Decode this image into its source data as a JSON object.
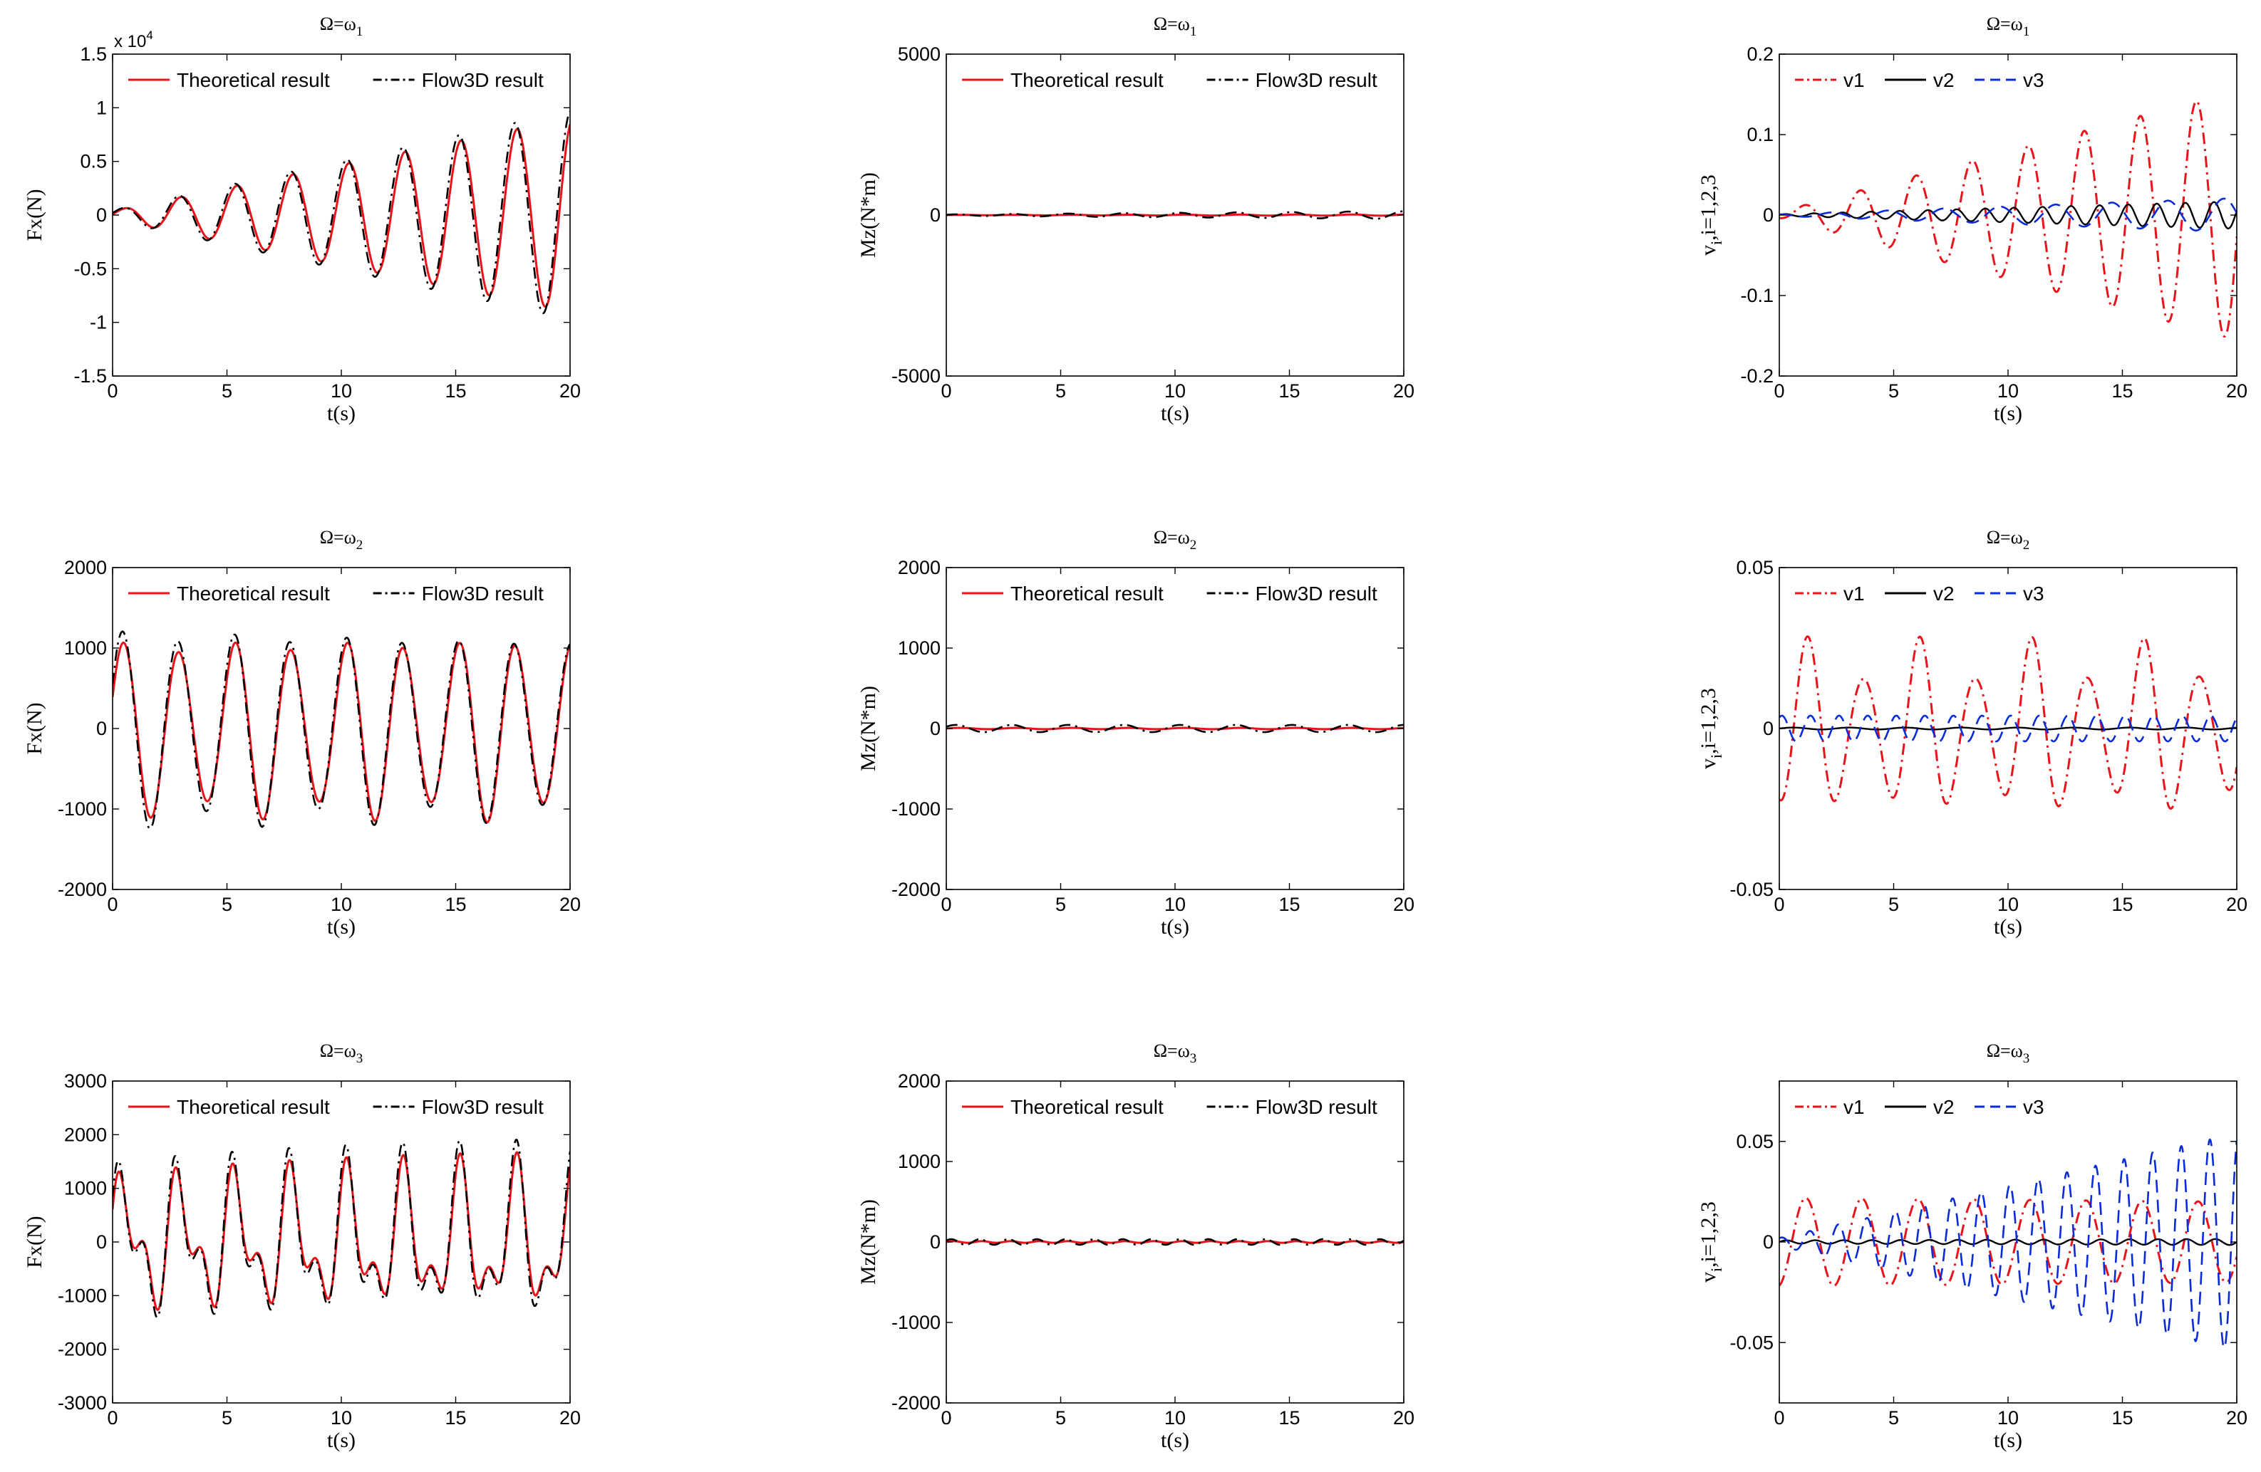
{
  "figure": {
    "colors": {
      "red": "#e8141a",
      "black": "#000000",
      "blue": "#0a2bd8"
    }
  },
  "chart_data": [
    {
      "type": "line",
      "id": "fx-w1",
      "title": "Ω=ω",
      "title_sub": "1",
      "xlabel": "t(s)",
      "ylabel": "Fx(N)",
      "xlim": [
        0,
        20
      ],
      "ylim": [
        -15000,
        15000
      ],
      "xticks": [
        0,
        5,
        10,
        15,
        20
      ],
      "xtick_labels": [
        "0",
        "5",
        "10",
        "15",
        "20"
      ],
      "yticks": [
        15000,
        10000,
        5000,
        0,
        -5000,
        -10000,
        -15000
      ],
      "ytick_labels": [
        "1.5",
        "1",
        "0.5",
        "0",
        "-0.5",
        "-1",
        "-1.5"
      ],
      "exponent_label": "x 10",
      "exponent_power": "4",
      "legend": [
        {
          "label": "Theoretical result",
          "style": "solid",
          "color": "#e8141a"
        },
        {
          "label": "Flow3D result",
          "style": "dashdot",
          "color": "#000000"
        }
      ],
      "series": [
        {
          "name": "Theoretical result",
          "style": "solid",
          "color": "#e8141a",
          "width": 3,
          "kind": "sine",
          "period": 2.45,
          "amp_start": 400,
          "amp_end": 9000,
          "phase": 0.2,
          "offset": 0
        },
        {
          "name": "Flow3D result",
          "style": "dashdot",
          "color": "#000000",
          "width": 2.6,
          "kind": "sine",
          "period": 2.45,
          "amp_start": 450,
          "amp_end": 9700,
          "phase": 0.45,
          "offset": 0
        }
      ]
    },
    {
      "type": "line",
      "id": "mz-w1",
      "title": "Ω=ω",
      "title_sub": "1",
      "xlabel": "t(s)",
      "ylabel": "Mz(N*m)",
      "xlim": [
        0,
        20
      ],
      "ylim": [
        -5000,
        5000
      ],
      "xticks": [
        0,
        5,
        10,
        15,
        20
      ],
      "xtick_labels": [
        "0",
        "5",
        "10",
        "15",
        "20"
      ],
      "yticks": [
        5000,
        0,
        -5000
      ],
      "ytick_labels": [
        "5000",
        "0",
        "-5000"
      ],
      "legend": [
        {
          "label": "Theoretical result",
          "style": "solid",
          "color": "#e8141a"
        },
        {
          "label": "Flow3D result",
          "style": "dashdot",
          "color": "#000000"
        }
      ],
      "series": [
        {
          "name": "Theoretical result",
          "style": "solid",
          "color": "#e8141a",
          "width": 3,
          "kind": "sine",
          "period": 2.45,
          "amp_start": 5,
          "amp_end": 20,
          "phase": 0,
          "offset": 0
        },
        {
          "name": "Flow3D result",
          "style": "dashdot",
          "color": "#000000",
          "width": 2.6,
          "kind": "sine",
          "period": 2.45,
          "amp_start": 20,
          "amp_end": 120,
          "phase": 0.5,
          "offset": 0
        }
      ]
    },
    {
      "type": "line",
      "id": "v-w1",
      "title": "Ω=ω",
      "title_sub": "1",
      "xlabel": "t(s)",
      "ylabel": "v",
      "ylabel_sub": "i",
      "ylabel_rest": ",i=1,2,3",
      "xlim": [
        0,
        20
      ],
      "ylim": [
        -0.2,
        0.2
      ],
      "xticks": [
        0,
        5,
        10,
        15,
        20
      ],
      "xtick_labels": [
        "0",
        "5",
        "10",
        "15",
        "20"
      ],
      "yticks": [
        0.2,
        0.1,
        0,
        -0.1,
        -0.2
      ],
      "ytick_labels": [
        "0.2",
        "0.1",
        "0",
        "-0.1",
        "-0.2"
      ],
      "legend": [
        {
          "label": "v1",
          "style": "dashdot",
          "color": "#e8141a"
        },
        {
          "label": "v2",
          "style": "solid",
          "color": "#000000"
        },
        {
          "label": "v3",
          "style": "dashed",
          "color": "#0a2bd8"
        }
      ],
      "series": [
        {
          "name": "v1",
          "style": "dashdot",
          "color": "#e8141a",
          "width": 3,
          "kind": "sine",
          "period": 2.45,
          "amp_start": 0.004,
          "amp_end": 0.155,
          "phase": -1.2,
          "offset": 0
        },
        {
          "name": "v2",
          "style": "solid",
          "color": "#000000",
          "width": 2.4,
          "kind": "sine",
          "period": 1.25,
          "amp_start": 0.001,
          "amp_end": 0.017,
          "phase": 0.3,
          "offset": 0
        },
        {
          "name": "v3",
          "style": "dashed",
          "color": "#0a2bd8",
          "width": 2.6,
          "kind": "sine",
          "period": 2.45,
          "amp_start": 0.001,
          "amp_end": 0.021,
          "phase": 2.0,
          "offset": 0
        }
      ]
    },
    {
      "type": "line",
      "id": "fx-w2",
      "title": "Ω=ω",
      "title_sub": "2",
      "xlabel": "t(s)",
      "ylabel": "Fx(N)",
      "xlim": [
        0,
        20
      ],
      "ylim": [
        -2000,
        2000
      ],
      "xticks": [
        0,
        5,
        10,
        15,
        20
      ],
      "xtick_labels": [
        "0",
        "5",
        "10",
        "15",
        "20"
      ],
      "yticks": [
        2000,
        1000,
        0,
        -1000,
        -2000
      ],
      "ytick_labels": [
        "2000",
        "1000",
        "0",
        "-1000",
        "-2000"
      ],
      "legend": [
        {
          "label": "Theoretical result",
          "style": "solid",
          "color": "#e8141a"
        },
        {
          "label": "Flow3D result",
          "style": "dashdot",
          "color": "#000000"
        }
      ],
      "series": [
        {
          "name": "Theoretical result",
          "style": "solid",
          "color": "#e8141a",
          "width": 3,
          "kind": "sine",
          "period": 2.45,
          "amp_start": 1000,
          "amp_end": 1050,
          "phase": 0.4,
          "offset": 0,
          "mod_amp": 0.12,
          "mod_period": 5.0
        },
        {
          "name": "Flow3D result",
          "style": "dashdot",
          "color": "#000000",
          "width": 2.6,
          "kind": "sine",
          "period": 2.45,
          "amp_start": 1150,
          "amp_end": 1050,
          "phase": 0.5,
          "offset": 0,
          "mod_amp": 0.1,
          "mod_period": 5.0
        }
      ]
    },
    {
      "type": "line",
      "id": "mz-w2",
      "title": "Ω=ω",
      "title_sub": "2",
      "xlabel": "t(s)",
      "ylabel": "Mz(N*m)",
      "xlim": [
        0,
        20
      ],
      "ylim": [
        -2000,
        2000
      ],
      "xticks": [
        0,
        5,
        10,
        15,
        20
      ],
      "xtick_labels": [
        "0",
        "5",
        "10",
        "15",
        "20"
      ],
      "yticks": [
        2000,
        1000,
        0,
        -1000,
        -2000
      ],
      "ytick_labels": [
        "2000",
        "1000",
        "0",
        "-1000",
        "-2000"
      ],
      "legend": [
        {
          "label": "Theoretical result",
          "style": "solid",
          "color": "#e8141a"
        },
        {
          "label": "Flow3D result",
          "style": "dashdot",
          "color": "#000000"
        }
      ],
      "series": [
        {
          "name": "Theoretical result",
          "style": "solid",
          "color": "#e8141a",
          "width": 3,
          "kind": "sine",
          "period": 2.45,
          "amp_start": 8,
          "amp_end": 8,
          "phase": 0,
          "offset": 0
        },
        {
          "name": "Flow3D result",
          "style": "dashdot",
          "color": "#000000",
          "width": 2.6,
          "kind": "sine",
          "period": 2.45,
          "amp_start": 45,
          "amp_end": 45,
          "phase": 0.5,
          "offset": 0
        }
      ]
    },
    {
      "type": "line",
      "id": "v-w2",
      "title": "Ω=ω",
      "title_sub": "2",
      "xlabel": "t(s)",
      "ylabel": "v",
      "ylabel_sub": "i",
      "ylabel_rest": ",i=1,2,3",
      "xlim": [
        0,
        20
      ],
      "ylim": [
        -0.05,
        0.05
      ],
      "xticks": [
        0,
        5,
        10,
        15,
        20
      ],
      "xtick_labels": [
        "0",
        "5",
        "10",
        "15",
        "20"
      ],
      "yticks": [
        0.05,
        0,
        -0.05
      ],
      "ytick_labels": [
        "0.05",
        "0",
        "-0.05"
      ],
      "legend": [
        {
          "label": "v1",
          "style": "dashdot",
          "color": "#e8141a"
        },
        {
          "label": "v2",
          "style": "solid",
          "color": "#000000"
        },
        {
          "label": "v3",
          "style": "dashed",
          "color": "#0a2bd8"
        }
      ],
      "series": [
        {
          "name": "v1",
          "style": "dashdot",
          "color": "#e8141a",
          "width": 3,
          "kind": "sine",
          "period": 2.45,
          "amp_start": 0.022,
          "amp_end": 0.022,
          "phase": -1.6,
          "offset": 0,
          "mod_amp": 0.3,
          "mod_period": 5.0
        },
        {
          "name": "v2",
          "style": "solid",
          "color": "#000000",
          "width": 2.4,
          "kind": "sine",
          "period": 2.45,
          "amp_start": 0.0003,
          "amp_end": 0.0003,
          "phase": 0,
          "offset": 0
        },
        {
          "name": "v3",
          "style": "dashed",
          "color": "#0a2bd8",
          "width": 2.6,
          "kind": "sine",
          "period": 1.25,
          "amp_start": 0.004,
          "amp_end": 0.004,
          "phase": 1.0,
          "offset": 0
        }
      ]
    },
    {
      "type": "line",
      "id": "fx-w3",
      "title": "Ω=ω",
      "title_sub": "3",
      "xlabel": "t(s)",
      "ylabel": "Fx(N)",
      "xlim": [
        0,
        20
      ],
      "ylim": [
        -3000,
        3000
      ],
      "xticks": [
        0,
        5,
        10,
        15,
        20
      ],
      "xtick_labels": [
        "0",
        "5",
        "10",
        "15",
        "20"
      ],
      "yticks": [
        3000,
        2000,
        1000,
        0,
        -1000,
        -2000,
        -3000
      ],
      "ytick_labels": [
        "3000",
        "2000",
        "1000",
        "0",
        "-1000",
        "-2000",
        "-3000"
      ],
      "legend": [
        {
          "label": "Theoretical result",
          "style": "solid",
          "color": "#e8141a"
        },
        {
          "label": "Flow3D result",
          "style": "dashdot",
          "color": "#000000"
        }
      ],
      "series": [
        {
          "name": "Theoretical result",
          "style": "solid",
          "color": "#e8141a",
          "width": 3,
          "kind": "two-tone",
          "period": 2.45,
          "amp_start": 900,
          "amp_end": 1100,
          "phase": 0.3,
          "amp2": 600,
          "period2": 1.25,
          "phase2": 0.6,
          "offset": 0
        },
        {
          "name": "Flow3D result",
          "style": "dashdot",
          "color": "#000000",
          "width": 2.6,
          "kind": "two-tone",
          "period": 2.45,
          "amp_start": 1000,
          "amp_end": 1250,
          "phase": 0.4,
          "amp2": 700,
          "period2": 1.25,
          "phase2": 0.7,
          "offset": 0
        }
      ]
    },
    {
      "type": "line",
      "id": "mz-w3",
      "title": "Ω=ω",
      "title_sub": "3",
      "xlabel": "t(s)",
      "ylabel": "Mz(N*m)",
      "xlim": [
        0,
        20
      ],
      "ylim": [
        -2000,
        2000
      ],
      "xticks": [
        0,
        5,
        10,
        15,
        20
      ],
      "xtick_labels": [
        "0",
        "5",
        "10",
        "15",
        "20"
      ],
      "yticks": [
        2000,
        1000,
        0,
        -1000,
        -2000
      ],
      "ytick_labels": [
        "2000",
        "1000",
        "0",
        "-1000",
        "-2000"
      ],
      "legend": [
        {
          "label": "Theoretical result",
          "style": "solid",
          "color": "#e8141a"
        },
        {
          "label": "Flow3D result",
          "style": "dashdot",
          "color": "#000000"
        }
      ],
      "series": [
        {
          "name": "Theoretical result",
          "style": "solid",
          "color": "#e8141a",
          "width": 3,
          "kind": "sine",
          "period": 1.25,
          "amp_start": 10,
          "amp_end": 10,
          "phase": 0,
          "offset": 0
        },
        {
          "name": "Flow3D result",
          "style": "dashdot",
          "color": "#000000",
          "width": 2.6,
          "kind": "sine",
          "period": 1.25,
          "amp_start": 35,
          "amp_end": 35,
          "phase": 0.5,
          "offset": 0
        }
      ]
    },
    {
      "type": "line",
      "id": "v-w3",
      "title": "Ω=ω",
      "title_sub": "3",
      "xlabel": "t(s)",
      "ylabel": "v",
      "ylabel_sub": "i",
      "ylabel_rest": ",i=1,2,3",
      "xlim": [
        0,
        20
      ],
      "ylim": [
        -0.08,
        0.08
      ],
      "xticks": [
        0,
        5,
        10,
        15,
        20
      ],
      "xtick_labels": [
        "0",
        "5",
        "10",
        "15",
        "20"
      ],
      "yticks": [
        0.05,
        0,
        -0.05
      ],
      "ytick_labels": [
        "0.05",
        "0",
        "-0.05"
      ],
      "legend": [
        {
          "label": "v1",
          "style": "dashdot",
          "color": "#e8141a"
        },
        {
          "label": "v2",
          "style": "solid",
          "color": "#000000"
        },
        {
          "label": "v3",
          "style": "dashed",
          "color": "#0a2bd8"
        }
      ],
      "series": [
        {
          "name": "v1",
          "style": "dashdot",
          "color": "#e8141a",
          "width": 3,
          "kind": "sine",
          "period": 2.45,
          "amp_start": 0.022,
          "amp_end": 0.02,
          "phase": -1.4,
          "offset": 0
        },
        {
          "name": "v2",
          "style": "solid",
          "color": "#000000",
          "width": 2.4,
          "kind": "sine",
          "period": 1.25,
          "amp_start": 0.0008,
          "amp_end": 0.0015,
          "phase": 0,
          "offset": 0
        },
        {
          "name": "v3",
          "style": "dashed",
          "color": "#0a2bd8",
          "width": 2.6,
          "kind": "sine",
          "period": 1.25,
          "amp_start": 0.002,
          "amp_end": 0.054,
          "phase": 1.2,
          "offset": 0
        }
      ]
    }
  ]
}
